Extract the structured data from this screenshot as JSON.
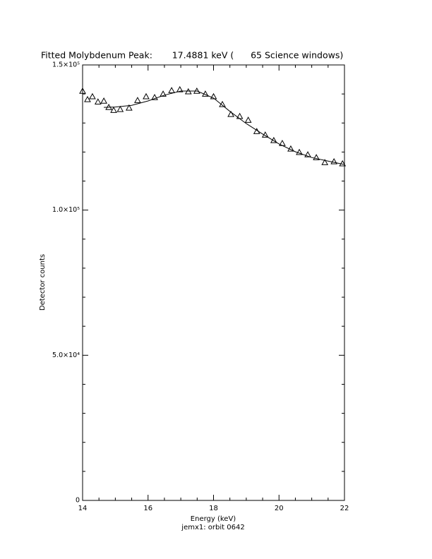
{
  "chart_data": {
    "type": "scatter",
    "title": "Fitted Molybdenum Peak:       17.4881 keV (      65 Science windows)",
    "x_label": "Energy (keV)",
    "subtitle": "jemx1: orbit 0642",
    "y_label": "Detector counts",
    "marker": "triangle",
    "color": "#000000",
    "xlim": [
      14,
      22
    ],
    "xticks": [
      14,
      16,
      18,
      20,
      22
    ],
    "ylim": [
      0,
      150000
    ],
    "yticks": [
      0,
      {
        "value": 50000,
        "label": "5.0×10⁴"
      },
      {
        "value": 100000,
        "label": "1.0×10⁵"
      },
      {
        "value": 150000,
        "label": "1.5×10⁵"
      }
    ],
    "points": {
      "x": [
        14.0,
        14.15,
        14.3,
        14.47,
        14.65,
        14.8,
        14.95,
        15.15,
        15.42,
        15.68,
        15.94,
        16.2,
        16.46,
        16.72,
        16.97,
        17.23,
        17.49,
        17.75,
        18.0,
        18.27,
        18.53,
        18.8,
        19.06,
        19.32,
        19.58,
        19.84,
        20.1,
        20.36,
        20.62,
        20.88,
        21.14,
        21.4,
        21.68,
        21.94
      ],
      "y": [
        141000,
        138100,
        139100,
        137300,
        137600,
        135400,
        134400,
        134700,
        135200,
        137800,
        139100,
        138800,
        140000,
        141200,
        141500,
        140800,
        141000,
        140000,
        139100,
        136400,
        133000,
        132300,
        131000,
        127100,
        125900,
        124000,
        123000,
        121100,
        119900,
        119100,
        118100,
        116400,
        116700,
        116000
      ]
    },
    "fit": {
      "x": [
        14.65,
        15.0,
        15.5,
        16.0,
        16.5,
        17.0,
        17.5,
        18.0,
        18.5,
        19.0,
        19.5,
        20.0,
        20.5,
        21.0,
        21.5,
        22.0
      ],
      "y": [
        135400,
        135500,
        136100,
        137600,
        139600,
        141000,
        141000,
        138600,
        134000,
        129800,
        126200,
        122800,
        120100,
        118100,
        116900,
        115700
      ]
    }
  }
}
